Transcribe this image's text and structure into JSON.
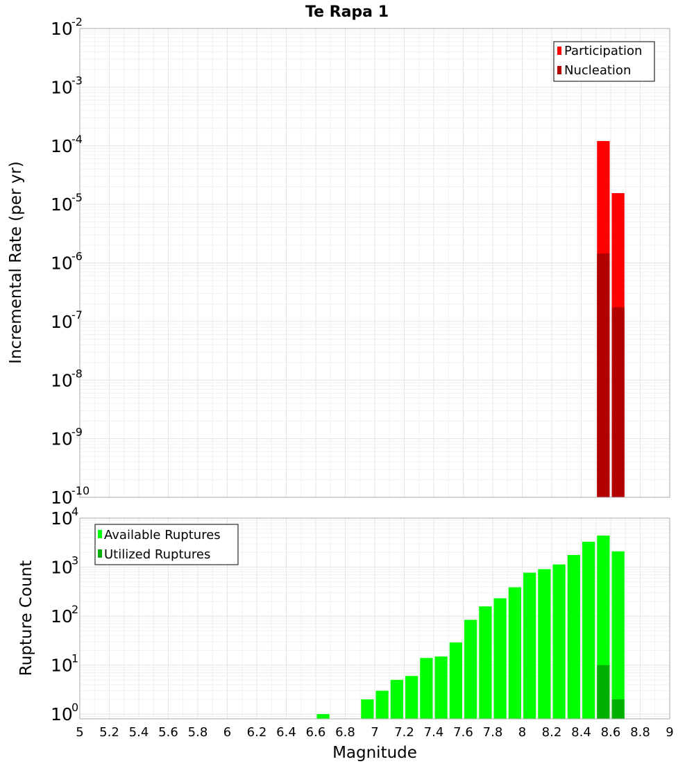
{
  "chart_data": [
    {
      "type": "bar",
      "panel": "top",
      "title": "Te Rapa 1",
      "xlabel": "",
      "ylabel": "Incremental Rate (per yr)",
      "yscale": "log",
      "ylim": [
        1e-10,
        0.01
      ],
      "xlim": [
        5,
        9
      ],
      "bin_width": 0.1,
      "ytick_exponents": [
        "-2",
        "-3",
        "-4",
        "-5",
        "-6",
        "-7",
        "-8",
        "-9",
        "-10"
      ],
      "legend_position": "top-right",
      "series": [
        {
          "name": "Participation",
          "color": "#ff0000",
          "x": [
            8.55,
            8.65
          ],
          "values": [
            0.00012,
            1.55e-05
          ]
        },
        {
          "name": "Nucleation",
          "color": "#b20000",
          "x": [
            8.55,
            8.65
          ],
          "values": [
            1.45e-06,
            1.75e-07
          ]
        }
      ]
    },
    {
      "type": "bar",
      "panel": "bottom",
      "title": "",
      "xlabel": "Magnitude",
      "ylabel": "Rupture Count",
      "yscale": "log",
      "ylim": [
        0.8,
        10000
      ],
      "xlim": [
        5,
        9
      ],
      "bin_width": 0.1,
      "ytick_exponents": [
        "0",
        "1",
        "2",
        "3",
        "4"
      ],
      "xtick_labels": [
        "5",
        "5.2",
        "5.4",
        "5.6",
        "5.8",
        "6",
        "6.2",
        "6.4",
        "6.6",
        "6.8",
        "7",
        "7.2",
        "7.4",
        "7.6",
        "7.8",
        "8",
        "8.2",
        "8.4",
        "8.6",
        "8.8",
        "9"
      ],
      "legend_position": "top-left",
      "series": [
        {
          "name": "Available Ruptures",
          "color": "#00ff00",
          "x": [
            6.65,
            6.95,
            7.05,
            7.15,
            7.25,
            7.35,
            7.45,
            7.55,
            7.65,
            7.75,
            7.85,
            7.95,
            8.05,
            8.15,
            8.25,
            8.35,
            8.45,
            8.55,
            8.65
          ],
          "values": [
            1,
            2,
            3,
            5,
            6,
            14,
            15,
            29,
            84,
            158,
            231,
            388,
            770,
            910,
            1134,
            1770,
            3310,
            4400,
            2100
          ]
        },
        {
          "name": "Utilized Ruptures",
          "color": "#00b000",
          "x": [
            8.55,
            8.65
          ],
          "values": [
            10,
            2
          ]
        }
      ]
    }
  ]
}
